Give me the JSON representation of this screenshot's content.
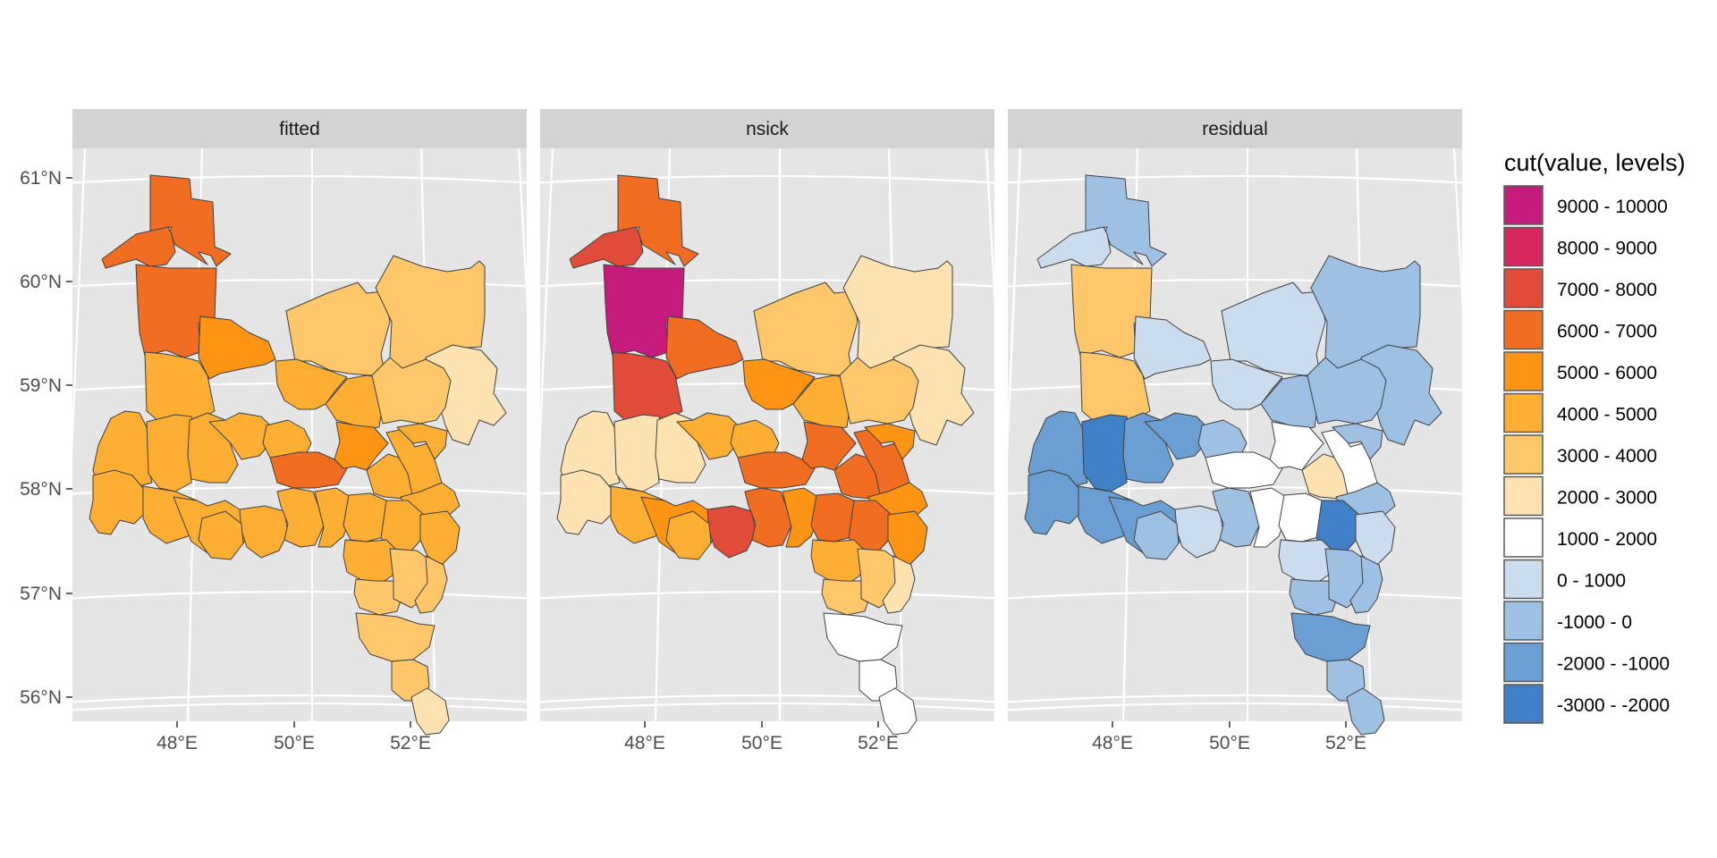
{
  "panels": [
    {
      "id": "fitted",
      "label": "fitted"
    },
    {
      "id": "nsick",
      "label": "nsick"
    },
    {
      "id": "residual",
      "label": "residual"
    }
  ],
  "axes": {
    "x_ticks": [
      "48°E",
      "50°E",
      "52°E"
    ],
    "y_ticks": [
      "61°N",
      "60°N",
      "59°N",
      "58°N",
      "57°N",
      "56°N"
    ]
  },
  "legend": {
    "title": "cut(value, levels)",
    "items": [
      {
        "label": "9000 - 10000",
        "color": "#c51b7d"
      },
      {
        "label": "8000 - 9000",
        "color": "#d6275f"
      },
      {
        "label": "7000 - 8000",
        "color": "#e04b3a"
      },
      {
        "label": "6000 - 7000",
        "color": "#f06d22"
      },
      {
        "label": "5000 - 6000",
        "color": "#fd9414"
      },
      {
        "label": "4000 - 5000",
        "color": "#fdae33"
      },
      {
        "label": "3000 - 4000",
        "color": "#fec76a"
      },
      {
        "label": "2000 - 3000",
        "color": "#fee2b2"
      },
      {
        "label": "1000 - 2000",
        "color": "#ffffff"
      },
      {
        "label": "0 - 1000",
        "color": "#cbdcef"
      },
      {
        "label": "-1000 - 0",
        "color": "#9ec0e3"
      },
      {
        "label": "-2000 - -1000",
        "color": "#6b9fd3"
      },
      {
        "label": "-3000 - -2000",
        "color": "#4080c6"
      }
    ]
  },
  "colors": {
    "panel_background": "#e5e5e5",
    "strip_background": "#d3d3d3",
    "grid": "#ffffff",
    "border": "#404040"
  }
}
